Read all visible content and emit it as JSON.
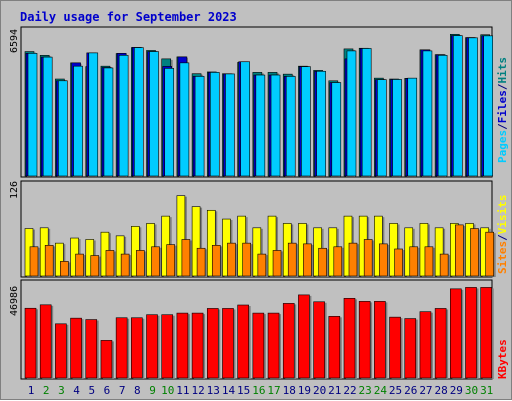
{
  "title": "Daily usage for September 2023",
  "panels": {
    "top": {
      "scale_label": "6594",
      "legend": [
        {
          "text": "Pages",
          "color": "#00ccff"
        },
        {
          "text": "/",
          "color": "#000080"
        },
        {
          "text": "Files",
          "color": "#0000cc"
        },
        {
          "text": "/",
          "color": "#000080"
        },
        {
          "text": "Hits",
          "color": "#008080"
        }
      ]
    },
    "middle": {
      "scale_label": "126",
      "legend": [
        {
          "text": "Sites",
          "color": "#ff8000"
        },
        {
          "text": "/",
          "color": "#000080"
        },
        {
          "text": "Visits",
          "color": "#ffff00"
        }
      ]
    },
    "bottom": {
      "scale_label": "46986",
      "legend": [
        {
          "text": "KBytes",
          "color": "#ff0000"
        }
      ]
    }
  },
  "days": [
    {
      "label": "1",
      "weekend": false
    },
    {
      "label": "2",
      "weekend": true
    },
    {
      "label": "3",
      "weekend": true
    },
    {
      "label": "4",
      "weekend": false
    },
    {
      "label": "5",
      "weekend": false
    },
    {
      "label": "6",
      "weekend": false
    },
    {
      "label": "7",
      "weekend": false
    },
    {
      "label": "8",
      "weekend": false
    },
    {
      "label": "9",
      "weekend": true
    },
    {
      "label": "10",
      "weekend": true
    },
    {
      "label": "11",
      "weekend": false
    },
    {
      "label": "12",
      "weekend": false
    },
    {
      "label": "13",
      "weekend": false
    },
    {
      "label": "14",
      "weekend": false
    },
    {
      "label": "15",
      "weekend": false
    },
    {
      "label": "16",
      "weekend": true
    },
    {
      "label": "17",
      "weekend": true
    },
    {
      "label": "18",
      "weekend": false
    },
    {
      "label": "19",
      "weekend": false
    },
    {
      "label": "20",
      "weekend": false
    },
    {
      "label": "21",
      "weekend": false
    },
    {
      "label": "22",
      "weekend": false
    },
    {
      "label": "23",
      "weekend": true
    },
    {
      "label": "24",
      "weekend": true
    },
    {
      "label": "25",
      "weekend": false
    },
    {
      "label": "26",
      "weekend": false
    },
    {
      "label": "27",
      "weekend": false
    },
    {
      "label": "28",
      "weekend": false
    },
    {
      "label": "29",
      "weekend": false
    },
    {
      "label": "30",
      "weekend": true
    },
    {
      "label": "31",
      "weekend": true
    }
  ],
  "colors": {
    "hits": "#008080",
    "files": "#0000cc",
    "pages": "#00ccff",
    "visits": "#ffff00",
    "sites": "#ff8000",
    "kbytes": "#ff0000",
    "title": "#0000cc",
    "weekend_label": "#008000",
    "weekday_label": "#000080",
    "background": "#c0c0c0"
  },
  "chart_data": [
    {
      "type": "bar",
      "title": "Daily usage for September 2023",
      "categories": [
        "1",
        "2",
        "3",
        "4",
        "5",
        "6",
        "7",
        "8",
        "9",
        "10",
        "11",
        "12",
        "13",
        "14",
        "15",
        "16",
        "17",
        "18",
        "19",
        "20",
        "21",
        "22",
        "23",
        "24",
        "25",
        "26",
        "27",
        "28",
        "29",
        "30",
        "31"
      ],
      "ylim": [
        0,
        6594
      ],
      "series": [
        {
          "name": "Hits",
          "values": [
            5620,
            5450,
            4380,
            5110,
            4940,
            4960,
            5530,
            5800,
            5670,
            5290,
            5380,
            4620,
            4700,
            4620,
            5130,
            4680,
            4680,
            4600,
            4960,
            4770,
            4300,
            5740,
            5770,
            4420,
            4380,
            4410,
            5700,
            5480,
            6400,
            6250,
            6380
          ]
        },
        {
          "name": "Files",
          "values": [
            5540,
            5370,
            4300,
            5110,
            5560,
            4900,
            5540,
            5810,
            5620,
            4950,
            5380,
            4500,
            4680,
            4610,
            5160,
            4560,
            4560,
            4500,
            4940,
            4730,
            4220,
            5290,
            5760,
            4350,
            4360,
            4400,
            5700,
            5480,
            6340,
            6250,
            6330
          ]
        },
        {
          "name": "Pages",
          "values": [
            5540,
            5370,
            4300,
            4960,
            5560,
            4880,
            5450,
            5800,
            5620,
            4860,
            5110,
            4500,
            4680,
            4610,
            5160,
            4560,
            4560,
            4500,
            4940,
            4730,
            4220,
            5650,
            5760,
            4350,
            4360,
            4420,
            5650,
            5450,
            6340,
            6240,
            6330
          ]
        }
      ]
    },
    {
      "type": "bar",
      "categories": [
        "1",
        "2",
        "3",
        "4",
        "5",
        "6",
        "7",
        "8",
        "9",
        "10",
        "11",
        "12",
        "13",
        "14",
        "15",
        "16",
        "17",
        "18",
        "19",
        "20",
        "21",
        "22",
        "23",
        "24",
        "25",
        "26",
        "27",
        "28",
        "29",
        "30",
        "31"
      ],
      "ylim": [
        0,
        126
      ],
      "series": [
        {
          "name": "Visits",
          "values": [
            65,
            66,
            45,
            52,
            50,
            60,
            55,
            68,
            72,
            82,
            110,
            95,
            90,
            78,
            82,
            66,
            82,
            72,
            72,
            66,
            66,
            82,
            82,
            82,
            72,
            66,
            72,
            66,
            72,
            72,
            66
          ]
        },
        {
          "name": "Sites",
          "values": [
            40,
            42,
            20,
            30,
            28,
            35,
            30,
            35,
            40,
            43,
            50,
            38,
            42,
            45,
            45,
            30,
            35,
            45,
            44,
            38,
            40,
            45,
            50,
            44,
            37,
            40,
            40,
            30,
            70,
            65,
            60
          ]
        }
      ]
    },
    {
      "type": "bar",
      "categories": [
        "1",
        "2",
        "3",
        "4",
        "5",
        "6",
        "7",
        "8",
        "9",
        "10",
        "11",
        "12",
        "13",
        "14",
        "15",
        "16",
        "17",
        "18",
        "19",
        "20",
        "21",
        "22",
        "23",
        "24",
        "25",
        "26",
        "27",
        "28",
        "29",
        "30",
        "31"
      ],
      "ylim": [
        0,
        46986
      ],
      "series": [
        {
          "name": "KBytes",
          "values": [
            34500,
            36200,
            26800,
            29600,
            28900,
            18600,
            29800,
            29800,
            31300,
            31300,
            32100,
            32100,
            34400,
            34400,
            36100,
            32100,
            32100,
            36900,
            41100,
            37700,
            30500,
            39400,
            37900,
            37900,
            30100,
            29400,
            32800,
            34400,
            44100,
            44800,
            44800
          ]
        }
      ]
    }
  ]
}
